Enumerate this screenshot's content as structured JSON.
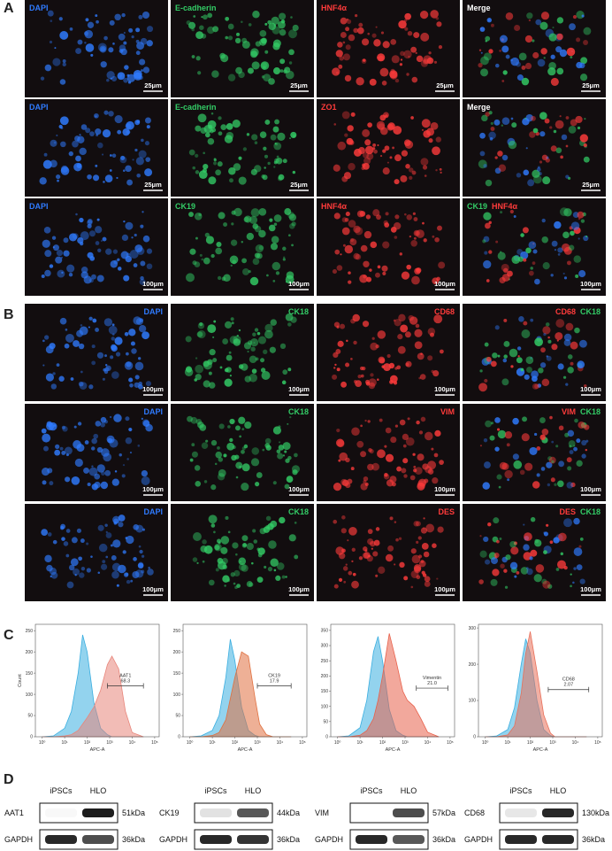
{
  "panel_a": {
    "label": "A",
    "label_align": "left",
    "rows": [
      [
        {
          "labels": [
            {
              "text": "DAPI",
              "color": "#2f7bff"
            }
          ],
          "scale": "25μm"
        },
        {
          "labels": [
            {
              "text": "E-cadherin",
              "color": "#33cc66"
            }
          ],
          "scale": "25μm"
        },
        {
          "labels": [
            {
              "text": "HNF4α",
              "color": "#ff3b3b"
            }
          ],
          "scale": "25μm"
        },
        {
          "labels": [
            {
              "text": "Merge",
              "color": "#ffffff"
            }
          ],
          "scale": "25μm"
        }
      ],
      [
        {
          "labels": [
            {
              "text": "DAPI",
              "color": "#2f7bff"
            }
          ],
          "scale": "25μm"
        },
        {
          "labels": [
            {
              "text": "E-cadherin",
              "color": "#33cc66"
            }
          ],
          "scale": "25μm"
        },
        {
          "labels": [
            {
              "text": "ZO1",
              "color": "#ff3b3b"
            }
          ]
        },
        {
          "labels": [
            {
              "text": "Merge",
              "color": "#ffffff"
            }
          ],
          "scale": "25μm"
        }
      ],
      [
        {
          "labels": [
            {
              "text": "DAPI",
              "color": "#2f7bff"
            }
          ],
          "scale": "100μm"
        },
        {
          "labels": [
            {
              "text": "CK19",
              "color": "#33cc66"
            }
          ],
          "scale": "100μm"
        },
        {
          "labels": [
            {
              "text": "HNF4α",
              "color": "#ff3b3b"
            }
          ],
          "scale": "100μm"
        },
        {
          "labels": [
            {
              "text": "CK19",
              "color": "#33cc66"
            },
            {
              "text": "HNF4α",
              "color": "#ff3b3b"
            }
          ],
          "scale": "100μm"
        }
      ]
    ]
  },
  "panel_b": {
    "label": "B",
    "label_align": "right",
    "rows": [
      [
        {
          "labels": [
            {
              "text": "DAPI",
              "color": "#2f7bff"
            }
          ],
          "scale": "100μm"
        },
        {
          "labels": [
            {
              "text": "CK18",
              "color": "#33cc66"
            }
          ],
          "scale": "100μm"
        },
        {
          "labels": [
            {
              "text": "CD68",
              "color": "#ff3b3b"
            }
          ],
          "scale": "100μm"
        },
        {
          "labels": [
            {
              "text": "CD68",
              "color": "#ff3b3b"
            },
            {
              "text": "CK18",
              "color": "#33cc66"
            }
          ],
          "scale": "100μm"
        }
      ],
      [
        {
          "labels": [
            {
              "text": "DAPI",
              "color": "#2f7bff"
            }
          ],
          "scale": "100μm"
        },
        {
          "labels": [
            {
              "text": "CK18",
              "color": "#33cc66"
            }
          ],
          "scale": "100μm"
        },
        {
          "labels": [
            {
              "text": "VIM",
              "color": "#ff3b3b"
            }
          ],
          "scale": "100μm"
        },
        {
          "labels": [
            {
              "text": "VIM",
              "color": "#ff3b3b"
            },
            {
              "text": "CK18",
              "color": "#33cc66"
            }
          ],
          "scale": "100μm"
        }
      ],
      [
        {
          "labels": [
            {
              "text": "DAPI",
              "color": "#2f7bff"
            }
          ],
          "scale": "100μm"
        },
        {
          "labels": [
            {
              "text": "CK18",
              "color": "#33cc66"
            }
          ],
          "scale": "100μm"
        },
        {
          "labels": [
            {
              "text": "DES",
              "color": "#ff3b3b"
            }
          ],
          "scale": "100μm"
        },
        {
          "labels": [
            {
              "text": "DES",
              "color": "#ff3b3b"
            },
            {
              "text": "CK18",
              "color": "#33cc66"
            }
          ],
          "scale": "100μm"
        }
      ]
    ]
  },
  "panel_c": {
    "label": "C",
    "charts": [
      {
        "type": "area",
        "x_label": "APC-A",
        "y_label": "Count",
        "x": [
          0,
          0.5,
          1,
          1.3,
          1.6,
          1.8,
          2,
          2.3,
          2.6,
          2.9,
          3.1,
          3.4,
          3.7,
          4,
          4.5
        ],
        "series": [
          {
            "color": "#3aaee0",
            "values": [
              0,
              2,
              20,
              60,
              150,
              240,
              200,
              80,
              20,
              5,
              0,
              0,
              0,
              0,
              0
            ]
          },
          {
            "color": "#e8857a",
            "values": [
              0,
              0,
              2,
              5,
              15,
              30,
              45,
              70,
              110,
              170,
              190,
              160,
              60,
              10,
              0
            ]
          }
        ],
        "xlim": [
          -0.3,
          5.2
        ],
        "xticks": [
          {
            "value": 0,
            "label": "10⁰"
          },
          {
            "value": 1,
            "label": "10¹"
          },
          {
            "value": 2,
            "label": "10²"
          },
          {
            "value": 3,
            "label": "10³"
          },
          {
            "value": 4,
            "label": "10⁴"
          },
          {
            "value": 5,
            "label": "10⁵"
          }
        ],
        "ylim": [
          0,
          265
        ],
        "yticks": [
          0,
          50,
          100,
          150,
          200,
          250
        ],
        "gate": {
          "name": "AAT1",
          "value": 68.3,
          "range": [
            2.9,
            4.5
          ],
          "level": 120
        }
      },
      {
        "type": "area",
        "x_label": "APC-A",
        "x": [
          0,
          0.5,
          1,
          1.3,
          1.6,
          1.8,
          2,
          2.3,
          2.6,
          2.9,
          3.1,
          3.4,
          3.7,
          4,
          4.5
        ],
        "series": [
          {
            "color": "#3aaee0",
            "values": [
              0,
              2,
              15,
              50,
              140,
              230,
              180,
              70,
              15,
              3,
              0,
              0,
              0,
              0,
              0
            ]
          },
          {
            "color": "#e0703f",
            "values": [
              0,
              0,
              3,
              10,
              40,
              90,
              140,
              200,
              190,
              90,
              30,
              5,
              0,
              0,
              0
            ]
          }
        ],
        "xlim": [
          -0.3,
          5.2
        ],
        "xticks": [
          {
            "value": 0,
            "label": "10⁰"
          },
          {
            "value": 1,
            "label": "10¹"
          },
          {
            "value": 2,
            "label": "10²"
          },
          {
            "value": 3,
            "label": "10³"
          },
          {
            "value": 4,
            "label": "10⁴"
          },
          {
            "value": 5,
            "label": "10⁵"
          }
        ],
        "ylim": [
          0,
          265
        ],
        "yticks": [
          0,
          50,
          100,
          150,
          200,
          250
        ],
        "gate": {
          "name": "CK19",
          "value": 17.9,
          "range": [
            3.0,
            4.5
          ],
          "level": 120
        }
      },
      {
        "type": "area",
        "x_label": "APC-A",
        "x": [
          0,
          0.5,
          1,
          1.3,
          1.6,
          1.8,
          2,
          2.3,
          2.6,
          2.9,
          3.1,
          3.4,
          3.7,
          4,
          4.5
        ],
        "series": [
          {
            "color": "#3aaee0",
            "values": [
              0,
              3,
              30,
              120,
              280,
              330,
              250,
              90,
              20,
              5,
              0,
              0,
              0,
              0,
              0
            ]
          },
          {
            "color": "#e8604a",
            "values": [
              0,
              0,
              5,
              20,
              60,
              120,
              200,
              340,
              250,
              150,
              120,
              100,
              60,
              15,
              0
            ]
          }
        ],
        "xlim": [
          -0.3,
          5.2
        ],
        "xticks": [
          {
            "value": 0,
            "label": "10⁰"
          },
          {
            "value": 1,
            "label": "10¹"
          },
          {
            "value": 2,
            "label": "10²"
          },
          {
            "value": 3,
            "label": "10³"
          },
          {
            "value": 4,
            "label": "10⁴"
          },
          {
            "value": 5,
            "label": "10⁵"
          }
        ],
        "ylim": [
          0,
          370
        ],
        "yticks": [
          0,
          50,
          100,
          150,
          200,
          250,
          300,
          350
        ],
        "gate": {
          "name": "Vimentin",
          "value": 21.0,
          "value_label": "21.0",
          "range": [
            3.5,
            4.9
          ],
          "level": 160
        }
      },
      {
        "type": "area",
        "x_label": "APC-A",
        "x": [
          0,
          0.5,
          1,
          1.3,
          1.6,
          1.8,
          2,
          2.3,
          2.6,
          2.9,
          3.1,
          3.4,
          3.7,
          4,
          4.5
        ],
        "series": [
          {
            "color": "#3aaee0",
            "values": [
              0,
              2,
              20,
              80,
              200,
              270,
              230,
              100,
              20,
              3,
              0,
              0,
              0,
              0,
              0
            ]
          },
          {
            "color": "#e8705a",
            "values": [
              0,
              0,
              5,
              30,
              120,
              230,
              290,
              180,
              60,
              10,
              0,
              0,
              0,
              0,
              0
            ]
          }
        ],
        "xlim": [
          -0.3,
          5.2
        ],
        "xticks": [
          {
            "value": 0,
            "label": "10⁰"
          },
          {
            "value": 1,
            "label": "10¹"
          },
          {
            "value": 2,
            "label": "10²"
          },
          {
            "value": 3,
            "label": "10³"
          },
          {
            "value": 4,
            "label": "10⁴"
          },
          {
            "value": 5,
            "label": "10⁵"
          }
        ],
        "ylim": [
          0,
          310
        ],
        "yticks": [
          0,
          100,
          200,
          300
        ],
        "gate": {
          "name": "CD68",
          "value": 2.07,
          "range": [
            2.8,
            4.6
          ],
          "level": 130
        }
      }
    ]
  },
  "panel_d": {
    "label": "D",
    "columns": [
      "iPSCs",
      "HLO"
    ],
    "blots": [
      {
        "protein": "AAT1",
        "size": "51kDa",
        "control": "GAPDH",
        "control_size": "36kDa"
      },
      {
        "protein": "CK19",
        "size": "44kDa",
        "control": "GAPDH",
        "control_size": "36kDa"
      },
      {
        "protein": "VIM",
        "size": "57kDa",
        "control": "GAPDH",
        "control_size": "36kDa"
      },
      {
        "protein": "CD68",
        "size": "130kDa",
        "control": "GAPDH",
        "control_size": "36kDa"
      }
    ]
  }
}
